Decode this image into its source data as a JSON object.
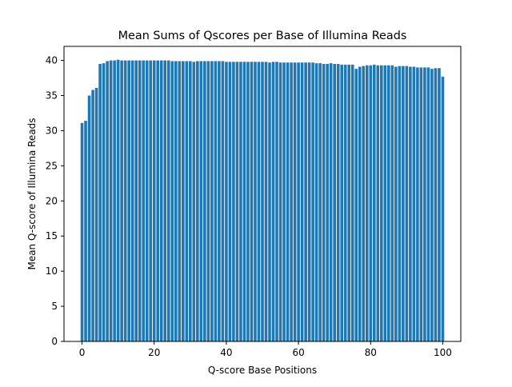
{
  "chart_data": {
    "type": "bar",
    "title": "Mean Sums of Qscores per Base of Illumina Reads",
    "xlabel": "Q-score Base Positions",
    "ylabel": "Mean Q-score of Illumina Reads",
    "xlim": [
      -5,
      105
    ],
    "ylim": [
      0,
      42
    ],
    "xticks": [
      0,
      20,
      40,
      60,
      80,
      100
    ],
    "yticks": [
      0,
      5,
      10,
      15,
      20,
      25,
      30,
      35,
      40
    ],
    "grid": false,
    "bar_color": "#1f77b4",
    "x": [
      0,
      1,
      2,
      3,
      4,
      5,
      6,
      7,
      8,
      9,
      10,
      11,
      12,
      13,
      14,
      15,
      16,
      17,
      18,
      19,
      20,
      21,
      22,
      23,
      24,
      25,
      26,
      27,
      28,
      29,
      30,
      31,
      32,
      33,
      34,
      35,
      36,
      37,
      38,
      39,
      40,
      41,
      42,
      43,
      44,
      45,
      46,
      47,
      48,
      49,
      50,
      51,
      52,
      53,
      54,
      55,
      56,
      57,
      58,
      59,
      60,
      61,
      62,
      63,
      64,
      65,
      66,
      67,
      68,
      69,
      70,
      71,
      72,
      73,
      74,
      75,
      76,
      77,
      78,
      79,
      80,
      81,
      82,
      83,
      84,
      85,
      86,
      87,
      88,
      89,
      90,
      91,
      92,
      93,
      94,
      95,
      96,
      97,
      98,
      99,
      100
    ],
    "values": [
      31.1,
      31.4,
      35.0,
      35.8,
      36.1,
      39.5,
      39.6,
      39.9,
      40.0,
      40.0,
      40.1,
      40.0,
      40.0,
      40.0,
      40.0,
      40.0,
      40.0,
      40.0,
      40.0,
      40.0,
      40.0,
      40.0,
      40.0,
      40.0,
      40.0,
      39.9,
      39.9,
      39.9,
      39.9,
      39.9,
      39.9,
      39.8,
      39.9,
      39.9,
      39.9,
      39.9,
      39.9,
      39.9,
      39.9,
      39.9,
      39.8,
      39.8,
      39.8,
      39.8,
      39.8,
      39.8,
      39.8,
      39.8,
      39.8,
      39.8,
      39.8,
      39.8,
      39.7,
      39.8,
      39.8,
      39.7,
      39.7,
      39.7,
      39.7,
      39.7,
      39.7,
      39.7,
      39.7,
      39.7,
      39.7,
      39.6,
      39.6,
      39.5,
      39.5,
      39.6,
      39.5,
      39.5,
      39.4,
      39.4,
      39.4,
      39.4,
      38.8,
      39.1,
      39.2,
      39.3,
      39.3,
      39.4,
      39.3,
      39.3,
      39.3,
      39.3,
      39.3,
      39.1,
      39.2,
      39.2,
      39.2,
      39.1,
      39.1,
      39.0,
      39.0,
      39.0,
      39.0,
      38.8,
      38.9,
      38.9,
      37.7
    ]
  }
}
